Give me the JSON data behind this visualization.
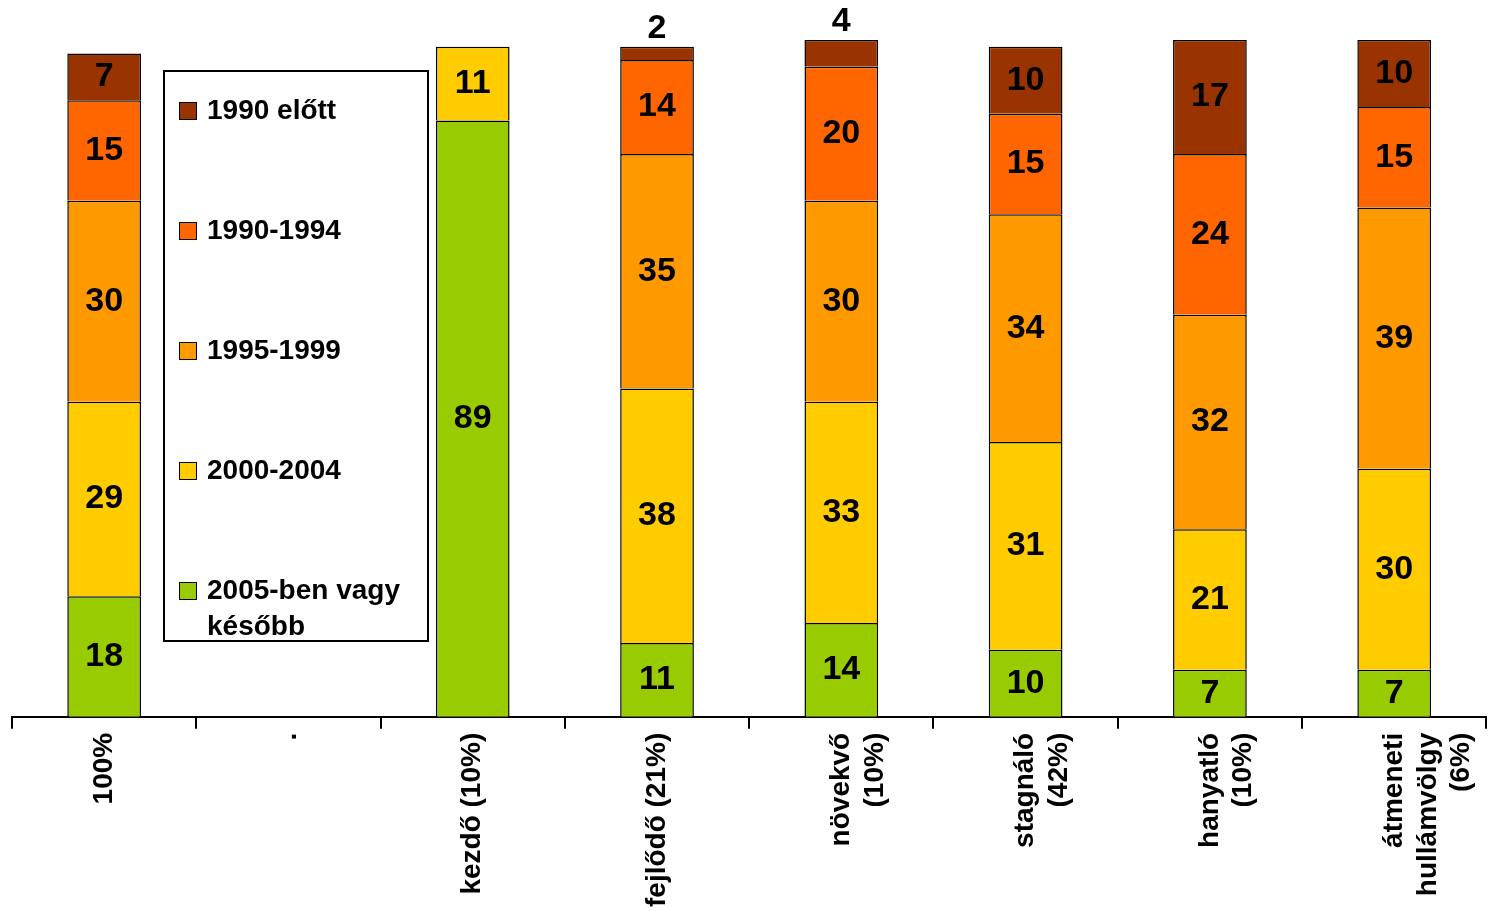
{
  "chart_data": {
    "type": "bar",
    "stacked": true,
    "data_labels": true,
    "legend": "top left",
    "grid": false,
    "categories": [
      "100%",
      ".",
      "kezdő (10%)",
      "fejlődő (21%)",
      "növekvő\n(10%)",
      "stagnáló\n(42%)",
      "hanyatló\n(10%)",
      "átmeneti\nhullámvölgy\n(6%)"
    ],
    "series": [
      {
        "name": "2005-ben vagy később",
        "color": "#99cc00",
        "values": [
          18,
          null,
          89,
          11,
          14,
          10,
          7,
          7
        ]
      },
      {
        "name": "2000-2004",
        "color": "#ffcc00",
        "values": [
          29,
          null,
          11,
          38,
          33,
          31,
          21,
          30
        ]
      },
      {
        "name": "1995-1999",
        "color": "#ff9900",
        "values": [
          30,
          null,
          null,
          35,
          30,
          34,
          32,
          39
        ]
      },
      {
        "name": "1990-1994",
        "color": "#ff6600",
        "values": [
          15,
          null,
          null,
          14,
          20,
          15,
          24,
          15
        ]
      },
      {
        "name": "1990 előtt",
        "color": "#993300",
        "values": [
          7,
          null,
          null,
          2,
          4,
          10,
          17,
          10
        ]
      }
    ]
  }
}
